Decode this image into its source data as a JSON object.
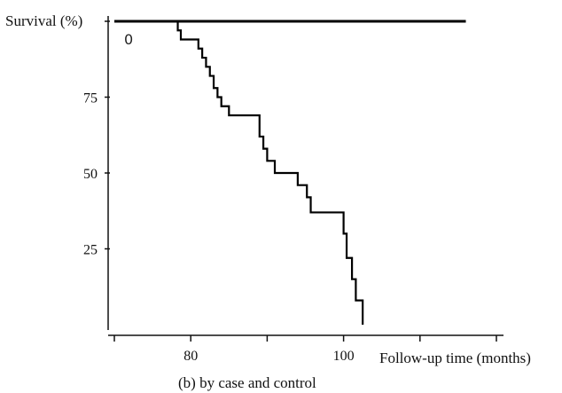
{
  "chart_data": {
    "type": "line",
    "ylabel": "Survival (%)",
    "xlabel": "Follow-up  time (months)",
    "caption": "(b) by case and control",
    "annotation": "0",
    "xlim": [
      70,
      120
    ],
    "ylim": [
      0,
      100
    ],
    "x_ticks": [
      80,
      100
    ],
    "x_minor_ticks": [
      70,
      90,
      110,
      120
    ],
    "y_ticks": [
      25,
      50,
      75
    ],
    "colors": {
      "line": "#000000",
      "axis": "#111111"
    },
    "series": [
      {
        "role": "control",
        "step": false,
        "points": [
          [
            70,
            100
          ],
          [
            116,
            100
          ]
        ]
      },
      {
        "role": "case",
        "step": true,
        "points": [
          [
            78,
            100
          ],
          [
            78.3,
            97
          ],
          [
            78.7,
            94
          ],
          [
            81,
            91
          ],
          [
            81.5,
            88
          ],
          [
            82,
            85
          ],
          [
            82.5,
            82
          ],
          [
            83,
            78
          ],
          [
            83.5,
            75
          ],
          [
            84,
            72
          ],
          [
            85,
            69
          ],
          [
            89,
            62
          ],
          [
            89.5,
            58
          ],
          [
            90,
            54
          ],
          [
            91,
            50
          ],
          [
            94,
            46
          ],
          [
            95.2,
            42
          ],
          [
            95.7,
            37
          ],
          [
            100,
            30
          ],
          [
            100.4,
            22
          ],
          [
            101.1,
            15
          ],
          [
            101.6,
            8
          ],
          [
            102.5,
            8
          ],
          [
            102.5,
            0
          ]
        ]
      }
    ]
  }
}
